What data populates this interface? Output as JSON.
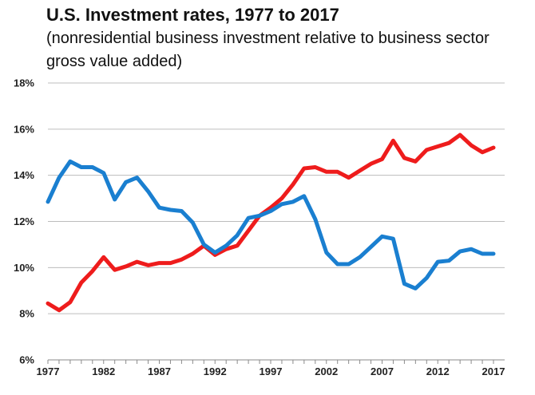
{
  "chart_data": {
    "type": "line",
    "title": "U.S. Investment rates, 1977 to 2017",
    "subtitle": "(nonresidential business investment relative to business sector gross value added)",
    "xlabel": "",
    "ylabel": "",
    "xlim": [
      1977,
      2017
    ],
    "ylim": [
      6,
      18
    ],
    "y_ticks": [
      6,
      8,
      10,
      12,
      14,
      16,
      18
    ],
    "y_tick_labels": [
      "6%",
      "8%",
      "10%",
      "12%",
      "14%",
      "16%",
      "18%"
    ],
    "x_ticks": [
      1977,
      1982,
      1987,
      1992,
      1997,
      2002,
      2007,
      2012,
      2017
    ],
    "x_tick_labels": [
      "1977",
      "1982",
      "1987",
      "1992",
      "1997",
      "2002",
      "2007",
      "2012",
      "2017"
    ],
    "grid": true,
    "legend": "none",
    "x": [
      1977,
      1978,
      1979,
      1980,
      1981,
      1982,
      1983,
      1984,
      1985,
      1986,
      1987,
      1988,
      1989,
      1990,
      1991,
      1992,
      1993,
      1994,
      1995,
      1996,
      1997,
      1998,
      1999,
      2000,
      2001,
      2002,
      2003,
      2004,
      2005,
      2006,
      2007,
      2008,
      2009,
      2010,
      2011,
      2012,
      2013,
      2014,
      2015,
      2016,
      2017
    ],
    "series": [
      {
        "name": "Red series",
        "color": "#ee1c1c",
        "values": [
          8.45,
          8.15,
          8.5,
          9.35,
          9.85,
          10.45,
          9.9,
          10.05,
          10.25,
          10.1,
          10.2,
          10.2,
          10.35,
          10.6,
          10.95,
          10.55,
          10.8,
          10.95,
          11.6,
          12.25,
          12.6,
          13.0,
          13.6,
          14.3,
          14.35,
          14.15,
          14.15,
          13.9,
          14.2,
          14.5,
          14.7,
          15.5,
          14.75,
          14.6,
          15.1,
          15.25,
          15.4,
          15.75,
          15.3,
          15.0,
          15.2
        ]
      },
      {
        "name": "Blue series",
        "color": "#1a7fd0",
        "values": [
          12.85,
          13.9,
          14.6,
          14.35,
          14.35,
          14.1,
          12.95,
          13.7,
          13.9,
          13.3,
          12.6,
          12.5,
          12.45,
          11.95,
          11.0,
          10.65,
          10.95,
          11.4,
          12.15,
          12.25,
          12.45,
          12.75,
          12.85,
          13.1,
          12.1,
          10.65,
          10.15,
          10.15,
          10.45,
          10.9,
          11.35,
          11.25,
          9.3,
          9.1,
          9.55,
          10.25,
          10.3,
          10.7,
          10.8,
          10.6,
          10.6
        ]
      }
    ]
  }
}
